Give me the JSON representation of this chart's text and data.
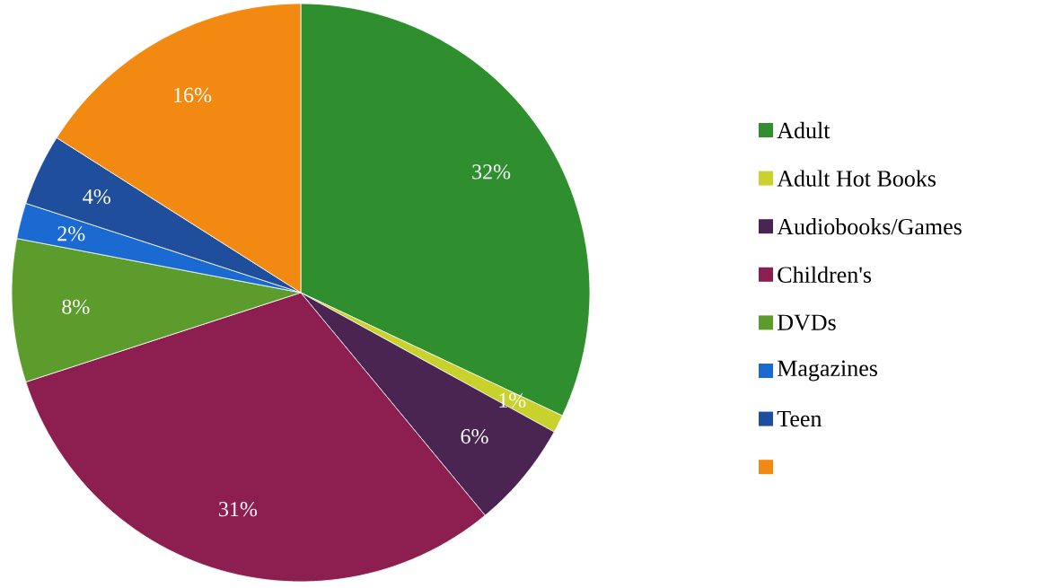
{
  "chart_data": {
    "type": "pie",
    "categories": [
      "Adult",
      "Adult Hot Books",
      "Audiobooks/Games",
      "Children's",
      "DVDs",
      "Magazines",
      "Teen",
      null
    ],
    "values": [
      32,
      1,
      6,
      31,
      8,
      2,
      4,
      16
    ],
    "value_labels": [
      "32%",
      "1%",
      "6%",
      "31%",
      "8%",
      "2%",
      "4%",
      "16%"
    ],
    "colors": [
      "#2f8f2f",
      "#c9d22c",
      "#4a2552",
      "#8c1f50",
      "#5c9c2c",
      "#1b6ad2",
      "#1f4f9c",
      "#f28a12"
    ],
    "legend": "right"
  }
}
